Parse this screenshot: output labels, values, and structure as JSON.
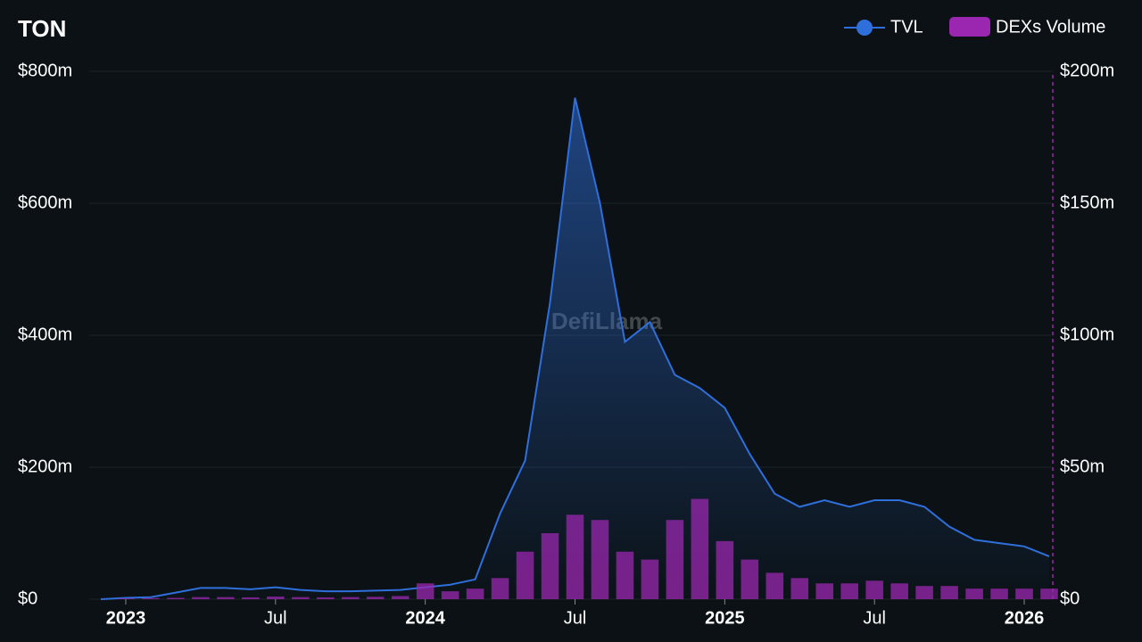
{
  "chart_data": {
    "type": "line-bar",
    "title": "TON",
    "watermark": "DefiLlama",
    "x": [
      "2022-12",
      "2023-01",
      "2023-02",
      "2023-03",
      "2023-04",
      "2023-05",
      "2023-06",
      "2023-07",
      "2023-08",
      "2023-09",
      "2023-10",
      "2023-11",
      "2023-12",
      "2024-01",
      "2024-02",
      "2024-03",
      "2024-04",
      "2024-05",
      "2024-06",
      "2024-07",
      "2024-08",
      "2024-09",
      "2024-10",
      "2024-11",
      "2024-12",
      "2025-01",
      "2025-02",
      "2025-03",
      "2025-04",
      "2025-05",
      "2025-06",
      "2025-07",
      "2025-08",
      "2025-09",
      "2025-10",
      "2025-11",
      "2025-12",
      "2026-01",
      "2026-02"
    ],
    "series": [
      {
        "name": "TVL",
        "color": "#2f6fdb",
        "axis": "y",
        "values": [
          0,
          2,
          3,
          10,
          17,
          17,
          15,
          18,
          14,
          12,
          12,
          13,
          14,
          18,
          22,
          30,
          130,
          210,
          450,
          760,
          600,
          390,
          420,
          340,
          320,
          290,
          220,
          160,
          140,
          150,
          140,
          150,
          150,
          140,
          110,
          90,
          85,
          80,
          65
        ]
      },
      {
        "name": "DEXs Volume",
        "color": "#9b27b0",
        "axis": "y2",
        "values": [
          0,
          0.3,
          0.4,
          0.5,
          0.8,
          0.8,
          0.7,
          1,
          0.8,
          0.7,
          0.8,
          0.9,
          1.2,
          6,
          3,
          4,
          8,
          18,
          25,
          32,
          30,
          18,
          15,
          30,
          38,
          22,
          15,
          10,
          8,
          6,
          6,
          7,
          6,
          5,
          5,
          4,
          4,
          4,
          4
        ]
      }
    ],
    "xlim": [
      "2022-12",
      "2026-02"
    ],
    "xticks": [
      {
        "value": "2023-01",
        "label": "2023"
      },
      {
        "value": "2023-07",
        "label": "Jul"
      },
      {
        "value": "2024-01",
        "label": "2024"
      },
      {
        "value": "2024-07",
        "label": "Jul"
      },
      {
        "value": "2025-01",
        "label": "2025"
      },
      {
        "value": "2025-07",
        "label": "Jul"
      },
      {
        "value": "2026-01",
        "label": "2026"
      }
    ],
    "ylim": [
      0,
      800
    ],
    "yticks": [
      {
        "value": 0,
        "label": "$0"
      },
      {
        "value": 200,
        "label": "$200m"
      },
      {
        "value": 400,
        "label": "$400m"
      },
      {
        "value": 600,
        "label": "$600m"
      },
      {
        "value": 800,
        "label": "$800m"
      }
    ],
    "y2lim": [
      0,
      200
    ],
    "y2ticks": [
      {
        "value": 0,
        "label": "$0"
      },
      {
        "value": 50,
        "label": "$50m"
      },
      {
        "value": 100,
        "label": "$100m"
      },
      {
        "value": 150,
        "label": "$150m"
      },
      {
        "value": 200,
        "label": "$200m"
      }
    ],
    "grid": true
  }
}
